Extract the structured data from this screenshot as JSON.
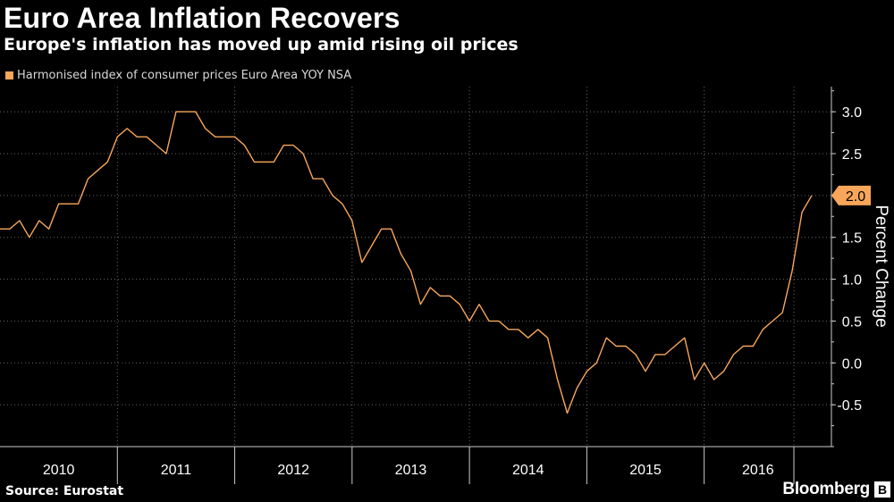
{
  "header": {
    "title": "Euro Area Inflation Recovers",
    "subtitle": "Europe's inflation has moved up amid rising oil prices"
  },
  "footer": {
    "source": "Source: Eurostat",
    "brand": "Bloomberg"
  },
  "colors": {
    "background": "#000000",
    "line": "#f7a65a",
    "grid": "#666666",
    "axis": "#cccccc",
    "label_bg": "#f7a65a"
  },
  "chart_data": {
    "type": "line",
    "title": "Euro Area Inflation Recovers",
    "subtitle": "Europe's inflation has moved up amid rising oil prices",
    "ylabel": "Percent Change",
    "xlabel": "",
    "ylim": [
      -1.0,
      3.3
    ],
    "yticks": [
      -0.5,
      0.0,
      0.5,
      1.0,
      1.5,
      2.0,
      2.5,
      3.0
    ],
    "ytick_labels": [
      "-0.5",
      "0.0",
      "0.5",
      "1.0",
      "1.5",
      "2.0",
      "2.5",
      "3.0"
    ],
    "x_start": "2010-01",
    "x_end": "2016-12",
    "year_labels": [
      "2010",
      "2011",
      "2012",
      "2013",
      "2014",
      "2015",
      "2016"
    ],
    "grid": true,
    "legend_position": "top-left",
    "last_value_label": "2.0",
    "series": [
      {
        "name": "Harmonised index of consumer prices Euro Area YOY NSA",
        "color": "#f7a65a",
        "x": [
          "2010-01",
          "2010-02",
          "2010-03",
          "2010-04",
          "2010-05",
          "2010-06",
          "2010-07",
          "2010-08",
          "2010-09",
          "2010-10",
          "2010-11",
          "2010-12",
          "2011-01",
          "2011-02",
          "2011-03",
          "2011-04",
          "2011-05",
          "2011-06",
          "2011-07",
          "2011-08",
          "2011-09",
          "2011-10",
          "2011-11",
          "2011-12",
          "2012-01",
          "2012-02",
          "2012-03",
          "2012-04",
          "2012-05",
          "2012-06",
          "2012-07",
          "2012-08",
          "2012-09",
          "2012-10",
          "2012-11",
          "2012-12",
          "2013-01",
          "2013-02",
          "2013-03",
          "2013-04",
          "2013-05",
          "2013-06",
          "2013-07",
          "2013-08",
          "2013-09",
          "2013-10",
          "2013-11",
          "2013-12",
          "2014-01",
          "2014-02",
          "2014-03",
          "2014-04",
          "2014-05",
          "2014-06",
          "2014-07",
          "2014-08",
          "2014-09",
          "2014-10",
          "2014-11",
          "2014-12",
          "2015-01",
          "2015-02",
          "2015-03",
          "2015-04",
          "2015-05",
          "2015-06",
          "2015-07",
          "2015-08",
          "2015-09",
          "2015-10",
          "2015-11",
          "2015-12",
          "2016-01",
          "2016-02",
          "2016-03",
          "2016-04",
          "2016-05",
          "2016-06",
          "2016-07",
          "2016-08",
          "2016-09",
          "2016-10",
          "2016-11",
          "2016-12"
        ],
        "values": [
          1.6,
          1.6,
          1.7,
          1.5,
          1.7,
          1.6,
          1.9,
          1.9,
          1.9,
          2.2,
          2.3,
          2.4,
          2.7,
          2.8,
          2.7,
          2.7,
          2.6,
          2.5,
          3.0,
          3.0,
          3.0,
          2.8,
          2.7,
          2.7,
          2.7,
          2.6,
          2.4,
          2.4,
          2.4,
          2.6,
          2.6,
          2.5,
          2.2,
          2.2,
          2.0,
          1.9,
          1.7,
          1.2,
          1.4,
          1.6,
          1.6,
          1.3,
          1.1,
          0.7,
          0.9,
          0.8,
          0.8,
          0.7,
          0.5,
          0.7,
          0.5,
          0.5,
          0.4,
          0.4,
          0.3,
          0.4,
          0.3,
          -0.2,
          -0.6,
          -0.3,
          -0.1,
          0.0,
          0.3,
          0.2,
          0.2,
          0.1,
          -0.1,
          0.1,
          0.1,
          0.2,
          0.3,
          -0.2,
          0.0,
          -0.2,
          -0.1,
          0.1,
          0.2,
          0.2,
          0.4,
          0.5,
          0.6,
          1.1,
          1.8,
          2.0
        ]
      }
    ]
  }
}
